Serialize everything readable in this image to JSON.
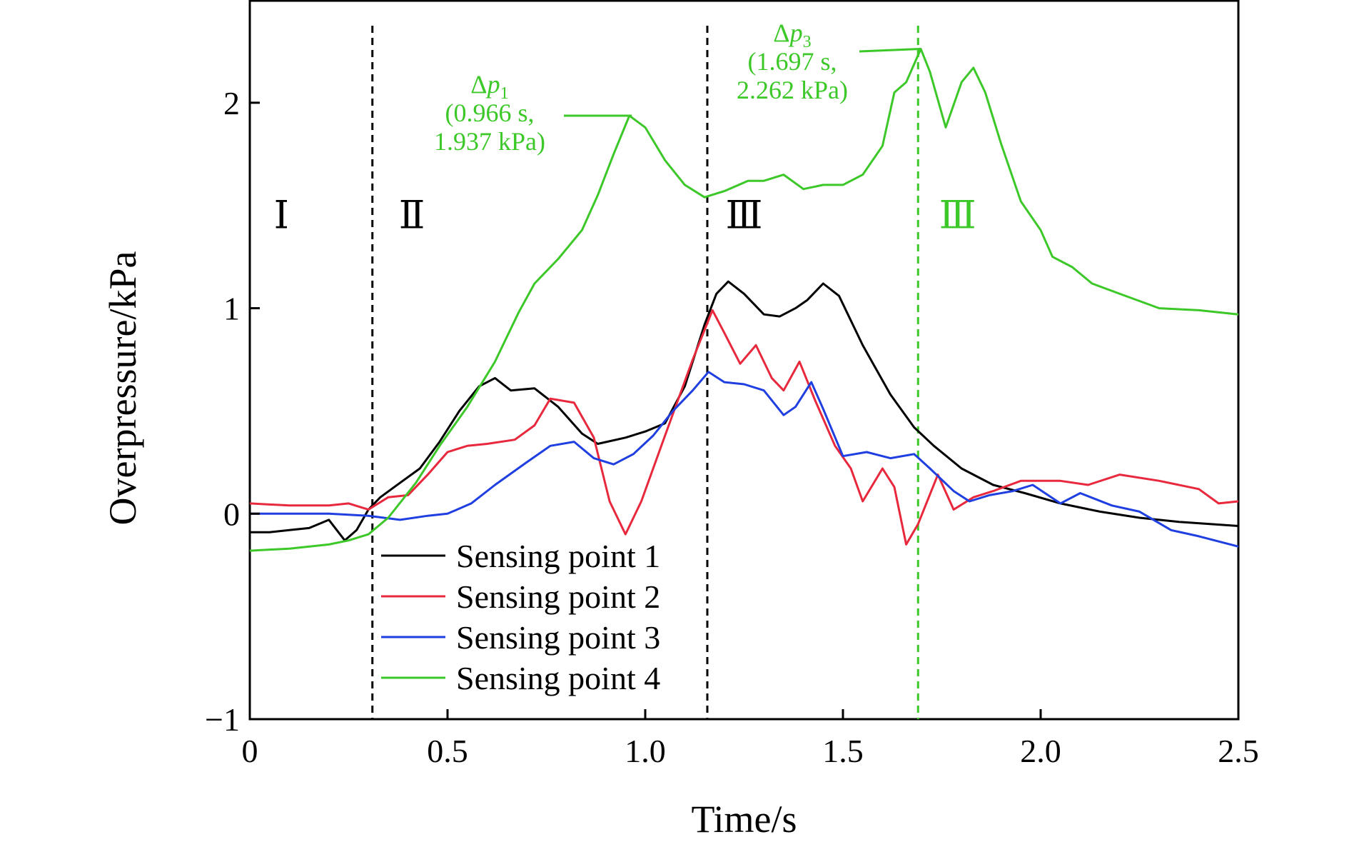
{
  "chart_data": {
    "type": "line",
    "xlabel": "Time/s",
    "ylabel": "Overpressure/kPa",
    "xlim": [
      0,
      2.5
    ],
    "ylim": [
      -1,
      2.5
    ],
    "xticks": [
      {
        "value": 0,
        "label": "0"
      },
      {
        "value": 0.5,
        "label": "0.5"
      },
      {
        "value": 1.0,
        "label": "1.0"
      },
      {
        "value": 1.5,
        "label": "1.5"
      },
      {
        "value": 2.0,
        "label": "2.0"
      },
      {
        "value": 2.5,
        "label": "2.5"
      }
    ],
    "yticks": [
      {
        "value": -1,
        "label": "−1"
      },
      {
        "value": 0,
        "label": "0"
      },
      {
        "value": 1,
        "label": "1"
      },
      {
        "value": 2,
        "label": "2"
      }
    ],
    "grid": false,
    "legend_position": "bottom-left",
    "series": [
      {
        "name": "Sensing point 1",
        "color": "#000000",
        "points": [
          [
            0,
            -0.09
          ],
          [
            0.05,
            -0.09
          ],
          [
            0.1,
            -0.08
          ],
          [
            0.15,
            -0.07
          ],
          [
            0.2,
            -0.03
          ],
          [
            0.24,
            -0.13
          ],
          [
            0.27,
            -0.08
          ],
          [
            0.3,
            0.02
          ],
          [
            0.33,
            0.08
          ],
          [
            0.38,
            0.15
          ],
          [
            0.43,
            0.22
          ],
          [
            0.48,
            0.35
          ],
          [
            0.53,
            0.5
          ],
          [
            0.58,
            0.62
          ],
          [
            0.62,
            0.66
          ],
          [
            0.66,
            0.6
          ],
          [
            0.72,
            0.61
          ],
          [
            0.78,
            0.52
          ],
          [
            0.84,
            0.39
          ],
          [
            0.88,
            0.34
          ],
          [
            0.95,
            0.37
          ],
          [
            1.0,
            0.4
          ],
          [
            1.05,
            0.44
          ],
          [
            1.1,
            0.62
          ],
          [
            1.15,
            0.92
          ],
          [
            1.18,
            1.07
          ],
          [
            1.21,
            1.13
          ],
          [
            1.25,
            1.07
          ],
          [
            1.3,
            0.97
          ],
          [
            1.34,
            0.96
          ],
          [
            1.38,
            1.0
          ],
          [
            1.41,
            1.04
          ],
          [
            1.45,
            1.12
          ],
          [
            1.49,
            1.06
          ],
          [
            1.55,
            0.82
          ],
          [
            1.62,
            0.58
          ],
          [
            1.68,
            0.42
          ],
          [
            1.73,
            0.33
          ],
          [
            1.8,
            0.22
          ],
          [
            1.88,
            0.14
          ],
          [
            1.96,
            0.1
          ],
          [
            2.05,
            0.05
          ],
          [
            2.15,
            0.01
          ],
          [
            2.25,
            -0.02
          ],
          [
            2.35,
            -0.04
          ],
          [
            2.5,
            -0.06
          ]
        ]
      },
      {
        "name": "Sensing point 2",
        "color": "#e8283c",
        "points": [
          [
            0,
            0.05
          ],
          [
            0.1,
            0.04
          ],
          [
            0.2,
            0.04
          ],
          [
            0.25,
            0.05
          ],
          [
            0.3,
            0.02
          ],
          [
            0.35,
            0.08
          ],
          [
            0.4,
            0.09
          ],
          [
            0.45,
            0.19
          ],
          [
            0.5,
            0.3
          ],
          [
            0.55,
            0.33
          ],
          [
            0.6,
            0.34
          ],
          [
            0.67,
            0.36
          ],
          [
            0.72,
            0.43
          ],
          [
            0.76,
            0.56
          ],
          [
            0.82,
            0.54
          ],
          [
            0.87,
            0.37
          ],
          [
            0.91,
            0.06
          ],
          [
            0.95,
            -0.1
          ],
          [
            0.99,
            0.06
          ],
          [
            1.05,
            0.38
          ],
          [
            1.12,
            0.75
          ],
          [
            1.17,
            0.99
          ],
          [
            1.2,
            0.88
          ],
          [
            1.24,
            0.73
          ],
          [
            1.28,
            0.82
          ],
          [
            1.32,
            0.66
          ],
          [
            1.35,
            0.6
          ],
          [
            1.39,
            0.74
          ],
          [
            1.43,
            0.55
          ],
          [
            1.48,
            0.33
          ],
          [
            1.52,
            0.22
          ],
          [
            1.55,
            0.06
          ],
          [
            1.6,
            0.22
          ],
          [
            1.63,
            0.13
          ],
          [
            1.66,
            -0.15
          ],
          [
            1.69,
            -0.05
          ],
          [
            1.74,
            0.19
          ],
          [
            1.78,
            0.02
          ],
          [
            1.83,
            0.08
          ],
          [
            1.88,
            0.11
          ],
          [
            1.95,
            0.16
          ],
          [
            2.05,
            0.16
          ],
          [
            2.12,
            0.14
          ],
          [
            2.2,
            0.19
          ],
          [
            2.3,
            0.16
          ],
          [
            2.4,
            0.12
          ],
          [
            2.45,
            0.05
          ],
          [
            2.5,
            0.06
          ]
        ]
      },
      {
        "name": "Sensing point 3",
        "color": "#1f3fe0",
        "points": [
          [
            0,
            0.0
          ],
          [
            0.1,
            0.0
          ],
          [
            0.2,
            0.0
          ],
          [
            0.3,
            -0.01
          ],
          [
            0.38,
            -0.03
          ],
          [
            0.45,
            -0.01
          ],
          [
            0.5,
            0.0
          ],
          [
            0.56,
            0.05
          ],
          [
            0.62,
            0.14
          ],
          [
            0.7,
            0.25
          ],
          [
            0.76,
            0.33
          ],
          [
            0.82,
            0.35
          ],
          [
            0.87,
            0.27
          ],
          [
            0.92,
            0.24
          ],
          [
            0.97,
            0.29
          ],
          [
            1.02,
            0.38
          ],
          [
            1.07,
            0.5
          ],
          [
            1.12,
            0.6
          ],
          [
            1.16,
            0.69
          ],
          [
            1.2,
            0.64
          ],
          [
            1.25,
            0.63
          ],
          [
            1.3,
            0.6
          ],
          [
            1.35,
            0.48
          ],
          [
            1.38,
            0.52
          ],
          [
            1.42,
            0.64
          ],
          [
            1.45,
            0.51
          ],
          [
            1.5,
            0.28
          ],
          [
            1.56,
            0.3
          ],
          [
            1.62,
            0.27
          ],
          [
            1.68,
            0.29
          ],
          [
            1.72,
            0.22
          ],
          [
            1.78,
            0.11
          ],
          [
            1.82,
            0.06
          ],
          [
            1.87,
            0.09
          ],
          [
            1.93,
            0.11
          ],
          [
            1.98,
            0.14
          ],
          [
            2.05,
            0.05
          ],
          [
            2.1,
            0.1
          ],
          [
            2.18,
            0.04
          ],
          [
            2.25,
            0.01
          ],
          [
            2.33,
            -0.08
          ],
          [
            2.4,
            -0.11
          ],
          [
            2.5,
            -0.16
          ]
        ]
      },
      {
        "name": "Sensing point 4",
        "color": "#3cc828",
        "points": [
          [
            0,
            -0.18
          ],
          [
            0.1,
            -0.17
          ],
          [
            0.2,
            -0.15
          ],
          [
            0.25,
            -0.13
          ],
          [
            0.3,
            -0.1
          ],
          [
            0.35,
            -0.02
          ],
          [
            0.42,
            0.15
          ],
          [
            0.48,
            0.33
          ],
          [
            0.55,
            0.52
          ],
          [
            0.62,
            0.74
          ],
          [
            0.68,
            0.98
          ],
          [
            0.72,
            1.12
          ],
          [
            0.78,
            1.24
          ],
          [
            0.84,
            1.38
          ],
          [
            0.88,
            1.55
          ],
          [
            0.92,
            1.75
          ],
          [
            0.96,
            1.937
          ],
          [
            1.0,
            1.88
          ],
          [
            1.05,
            1.72
          ],
          [
            1.1,
            1.6
          ],
          [
            1.15,
            1.54
          ],
          [
            1.2,
            1.57
          ],
          [
            1.26,
            1.62
          ],
          [
            1.3,
            1.62
          ],
          [
            1.35,
            1.65
          ],
          [
            1.4,
            1.58
          ],
          [
            1.45,
            1.6
          ],
          [
            1.5,
            1.6
          ],
          [
            1.55,
            1.65
          ],
          [
            1.6,
            1.79
          ],
          [
            1.63,
            2.05
          ],
          [
            1.66,
            2.1
          ],
          [
            1.697,
            2.262
          ],
          [
            1.72,
            2.15
          ],
          [
            1.76,
            1.88
          ],
          [
            1.8,
            2.1
          ],
          [
            1.83,
            2.17
          ],
          [
            1.86,
            2.05
          ],
          [
            1.9,
            1.8
          ],
          [
            1.95,
            1.52
          ],
          [
            2.0,
            1.38
          ],
          [
            2.03,
            1.25
          ],
          [
            2.08,
            1.2
          ],
          [
            2.13,
            1.12
          ],
          [
            2.2,
            1.07
          ],
          [
            2.3,
            1.0
          ],
          [
            2.4,
            0.99
          ],
          [
            2.5,
            0.97
          ]
        ]
      }
    ],
    "vlines": [
      {
        "x": 0.31,
        "color": "#000000",
        "style": "dashed"
      },
      {
        "x": 1.157,
        "color": "#000000",
        "style": "dashed"
      },
      {
        "x": 1.69,
        "color": "#3cc828",
        "style": "dashed"
      }
    ],
    "stage_labels": [
      {
        "text": "Ⅰ",
        "x": 0.08,
        "y": 1.39,
        "color": "#000000"
      },
      {
        "text": "Ⅱ",
        "x": 0.41,
        "y": 1.39,
        "color": "#000000"
      },
      {
        "text": "Ⅲ",
        "x": 1.25,
        "y": 1.39,
        "color": "#000000"
      },
      {
        "text": "Ⅲ",
        "x": 1.79,
        "y": 1.39,
        "color": "#3cc828"
      }
    ],
    "annotations": [
      {
        "color": "#3cc828",
        "line1_prefix": "Δ",
        "line1_var": "p",
        "line1_sub": "1",
        "line2": "(0.966 s,",
        "line3": "1.937 kPa)",
        "point": [
          0.966,
          1.937
        ]
      },
      {
        "color": "#3cc828",
        "line1_prefix": "Δ",
        "line1_var": "p",
        "line1_sub": "3",
        "line2": "(1.697 s,",
        "line3": "2.262 kPa)",
        "point": [
          1.697,
          2.262
        ]
      }
    ]
  }
}
